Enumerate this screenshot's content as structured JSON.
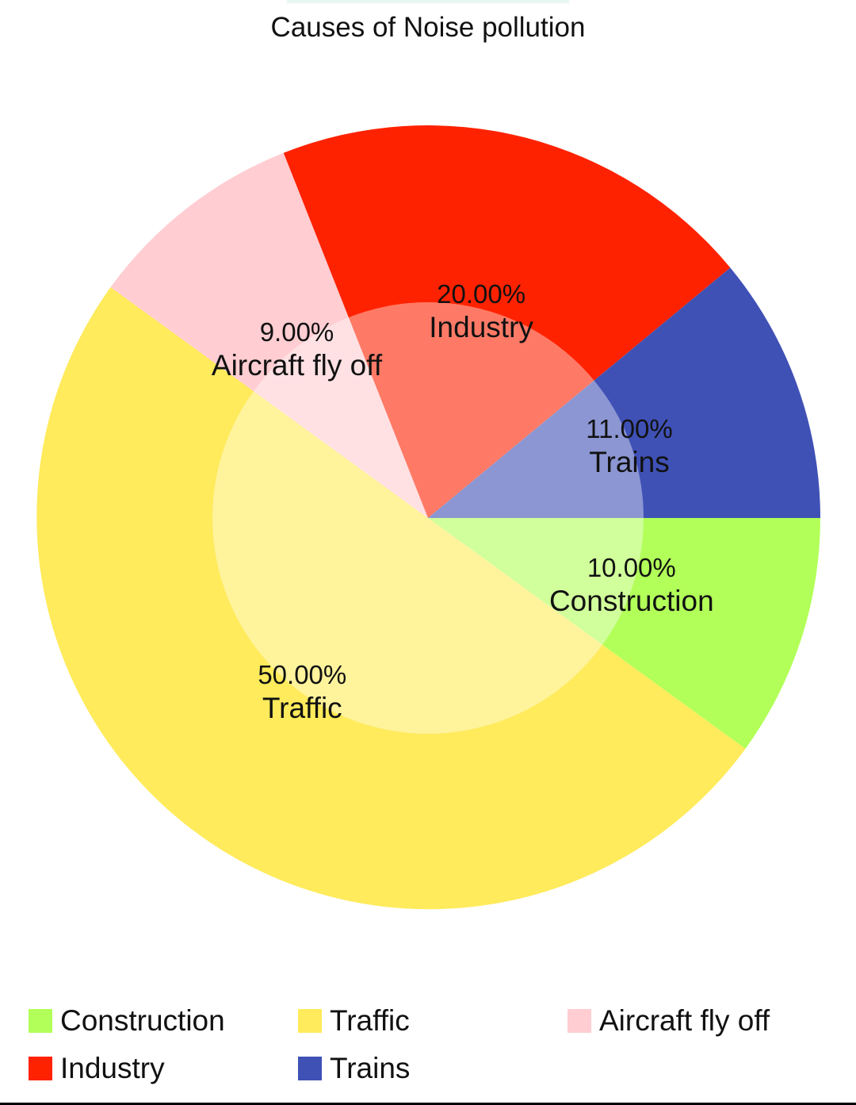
{
  "chart_data": {
    "type": "pie",
    "title": "Causes of Noise pollution",
    "slices": [
      {
        "label": "Construction",
        "value": 10.0,
        "percent_label": "10.00%",
        "color": "#b2ff59"
      },
      {
        "label": "Traffic",
        "value": 50.0,
        "percent_label": "50.00%",
        "color": "#ffeb5b"
      },
      {
        "label": "Aircraft fly off",
        "value": 9.0,
        "percent_label": "9.00%",
        "color": "#ffcdd2"
      },
      {
        "label": "Industry",
        "value": 20.0,
        "percent_label": "20.00%",
        "color": "#ff2200"
      },
      {
        "label": "Trains",
        "value": 11.0,
        "percent_label": "11.00%",
        "color": "#3f51b5"
      }
    ],
    "legend_position": "bottom"
  },
  "legend": {
    "items": [
      {
        "label": "Construction",
        "color": "#b2ff59"
      },
      {
        "label": "Traffic",
        "color": "#ffeb5b"
      },
      {
        "label": "Aircraft fly off",
        "color": "#ffcdd2"
      },
      {
        "label": "Industry",
        "color": "#ff2200"
      },
      {
        "label": "Trains",
        "color": "#3f51b5"
      }
    ]
  },
  "colors": {
    "hole_overlay": "#ffffff",
    "text": "#111111"
  }
}
